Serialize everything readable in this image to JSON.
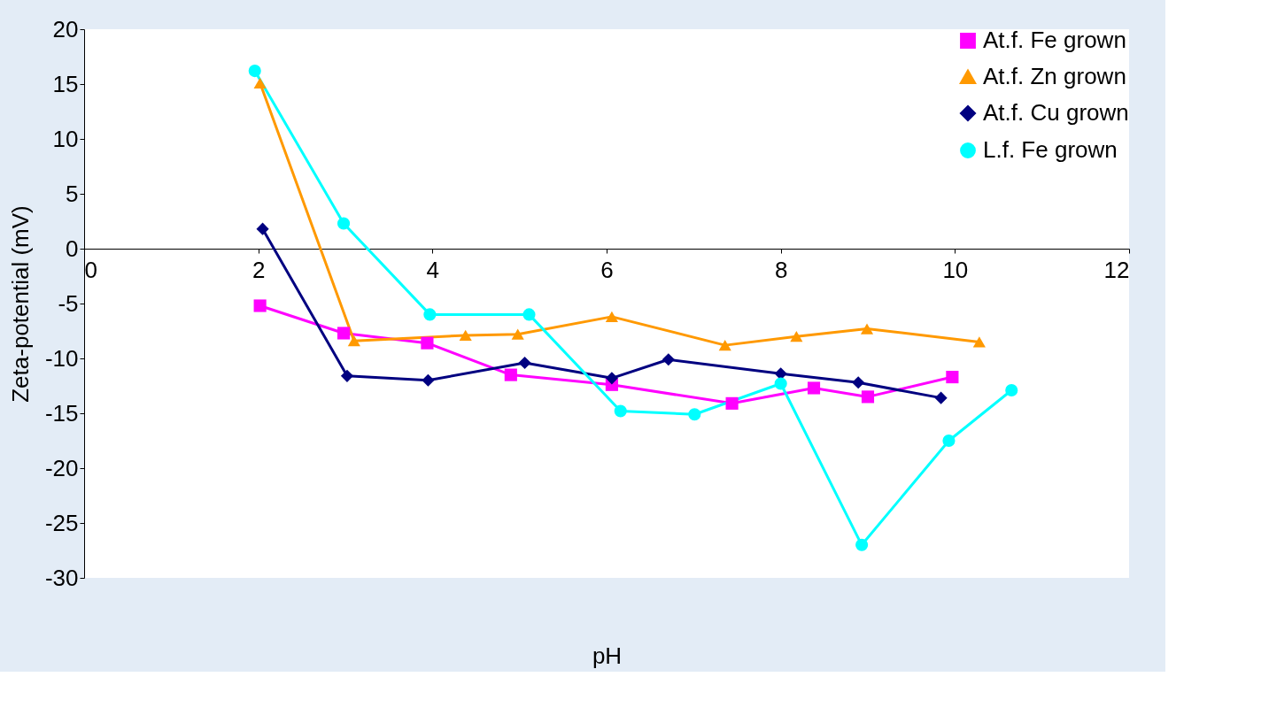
{
  "chart_data": {
    "type": "line",
    "xlabel": "pH",
    "ylabel": "Zeta-potential (mV)",
    "xlim": [
      0,
      12
    ],
    "xticks": [
      0,
      2,
      4,
      6,
      8,
      10,
      12
    ],
    "ylim": [
      -30,
      20
    ],
    "yticks": [
      -30,
      -25,
      -20,
      -15,
      -10,
      -5,
      0,
      5,
      10,
      15,
      20
    ],
    "grid": false,
    "legend": "top right",
    "line_style": "solid",
    "series": [
      {
        "name": "At.f. Fe grown",
        "color": "#ff00ff",
        "marker": "square",
        "x": [
          2.02,
          2.98,
          3.94,
          4.9,
          6.06,
          7.44,
          8.38,
          9.0,
          9.97
        ],
        "values": [
          -5.2,
          -7.7,
          -8.6,
          -11.5,
          -12.4,
          -14.1,
          -12.7,
          -13.5,
          -11.7
        ]
      },
      {
        "name": "At.f. Zn grown",
        "color": "#ff9900",
        "marker": "triangle",
        "x": [
          2.02,
          3.1,
          4.38,
          4.98,
          6.06,
          7.36,
          8.18,
          8.99,
          10.28
        ],
        "values": [
          15.1,
          -8.4,
          -7.9,
          -7.8,
          -6.2,
          -8.8,
          -8.0,
          -7.3,
          -8.5
        ]
      },
      {
        "name": "At.f. Cu grown",
        "color": "#000080",
        "marker": "diamond",
        "x": [
          2.05,
          3.02,
          3.95,
          5.06,
          6.06,
          6.71,
          8.0,
          8.89,
          9.84
        ],
        "values": [
          1.8,
          -11.6,
          -12.0,
          -10.4,
          -11.8,
          -10.1,
          -11.4,
          -12.2,
          -13.6
        ]
      },
      {
        "name": "L.f. Fe grown",
        "color": "#00ffff",
        "marker": "circle",
        "x": [
          1.96,
          2.98,
          3.97,
          5.11,
          6.16,
          7.01,
          8.0,
          8.93,
          9.93,
          10.65
        ],
        "values": [
          16.2,
          2.3,
          -6.0,
          -6.0,
          -14.8,
          -15.1,
          -12.3,
          -27.0,
          -17.5,
          -12.9
        ]
      }
    ]
  }
}
